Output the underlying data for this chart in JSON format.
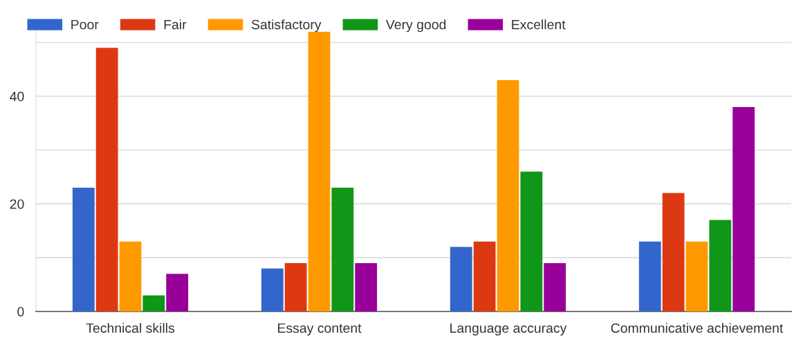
{
  "chart_data": {
    "type": "bar",
    "categories": [
      "Technical skills",
      "Essay content",
      "Language accuracy",
      "Communicative achievement"
    ],
    "series": [
      {
        "name": "Poor",
        "color": "#3366cc",
        "values": [
          23,
          8,
          12,
          13
        ]
      },
      {
        "name": "Fair",
        "color": "#dc3912",
        "values": [
          49,
          9,
          13,
          22
        ]
      },
      {
        "name": "Satisfactory",
        "color": "#ff9900",
        "values": [
          13,
          52,
          43,
          13
        ]
      },
      {
        "name": "Very good",
        "color": "#109618",
        "values": [
          3,
          23,
          26,
          17
        ]
      },
      {
        "name": "Excellent",
        "color": "#990099",
        "values": [
          7,
          9,
          9,
          38
        ]
      }
    ],
    "ylim": [
      0,
      52.5
    ],
    "yticks": [
      0,
      {
        "value": 10,
        "label": null
      },
      20,
      {
        "value": 30,
        "label": null
      },
      40,
      {
        "value": 50,
        "label": null
      }
    ],
    "grid": "y",
    "legend": "top left"
  }
}
